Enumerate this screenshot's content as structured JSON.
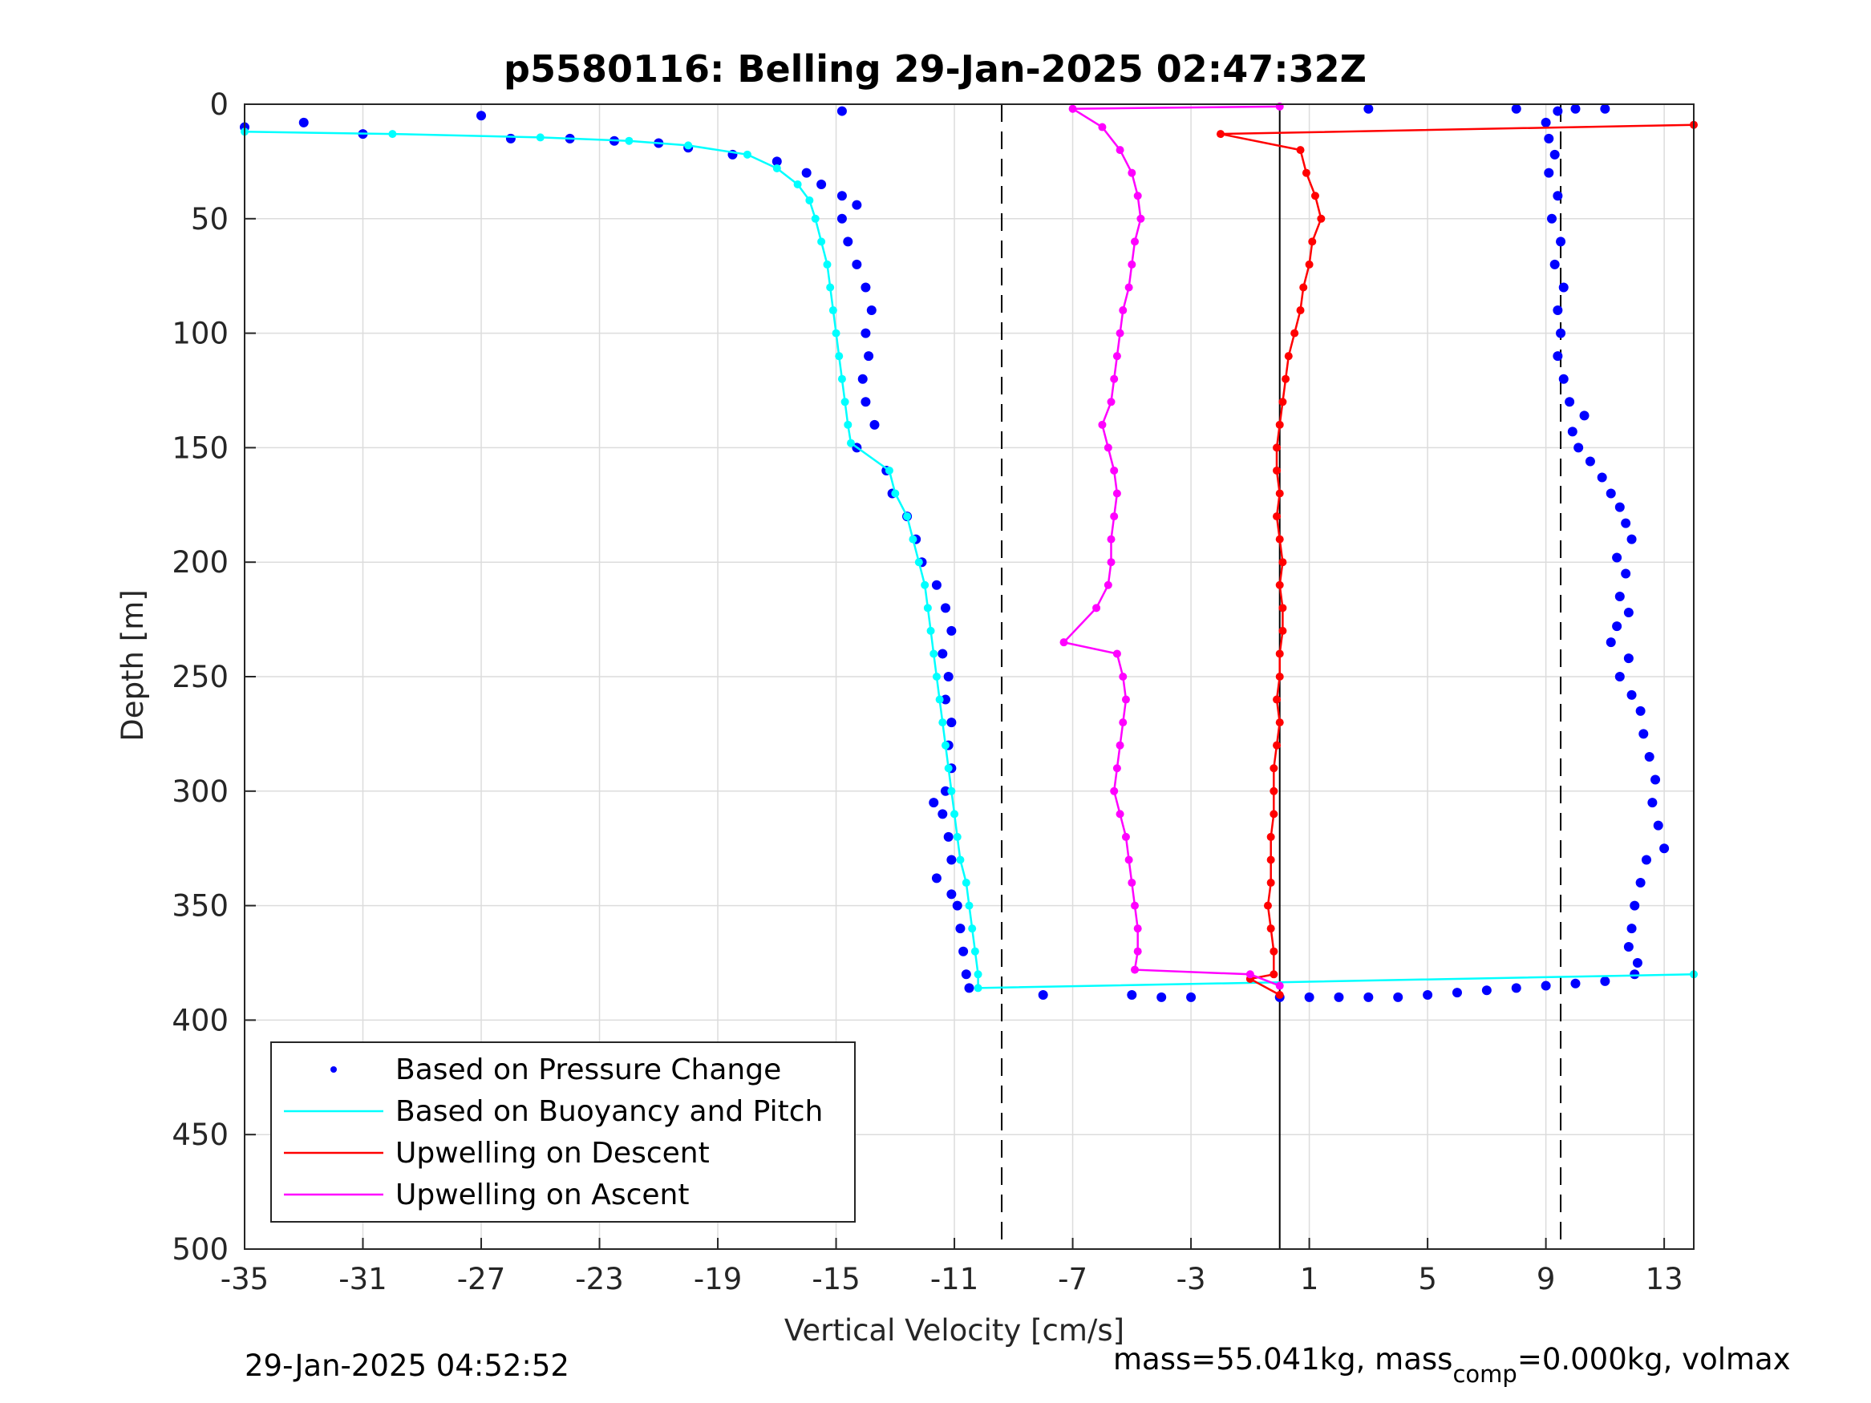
{
  "chart_data": {
    "type": "scatter",
    "title": "p5580116: Belling 29-Jan-2025 02:47:32Z",
    "xlabel": "Vertical Velocity [cm/s]",
    "ylabel": "Depth [m]",
    "xlim": [
      -35,
      14
    ],
    "ylim": [
      0,
      500
    ],
    "y_reversed": true,
    "grid": true,
    "x_ticks": [
      -35,
      -31,
      -27,
      -23,
      -19,
      -15,
      -11,
      -7,
      -3,
      1,
      5,
      9,
      13
    ],
    "y_ticks": [
      0,
      50,
      100,
      150,
      200,
      250,
      300,
      350,
      400,
      450,
      500
    ],
    "reference_lines": [
      {
        "x": -9.4,
        "style": "dashed",
        "color": "#000000"
      },
      {
        "x": 0,
        "style": "solid",
        "color": "#000000"
      },
      {
        "x": 9.5,
        "style": "dashed",
        "color": "#000000"
      }
    ],
    "legend": {
      "position": "bottom-left",
      "entries": [
        {
          "label": "Based on Pressure Change",
          "color": "#0000ff",
          "marker": "dot"
        },
        {
          "label": "Based on Buoyancy and Pitch",
          "color": "#00ffff",
          "marker": "line"
        },
        {
          "label": "Upwelling on Descent",
          "color": "#ff0000",
          "marker": "line"
        },
        {
          "label": "Upwelling on Ascent",
          "color": "#ff00ff",
          "marker": "line"
        }
      ]
    },
    "series": [
      {
        "name": "Based on Pressure Change",
        "color": "#0000ff",
        "marker": "dot",
        "points": [
          [
            -35,
            10
          ],
          [
            -33,
            8
          ],
          [
            -31,
            13
          ],
          [
            -27,
            5
          ],
          [
            -26,
            15
          ],
          [
            -24,
            15
          ],
          [
            -22.5,
            16
          ],
          [
            -21,
            17
          ],
          [
            -20,
            19
          ],
          [
            -18.5,
            22
          ],
          [
            -17,
            25
          ],
          [
            -16,
            30
          ],
          [
            -15.5,
            35
          ],
          [
            -14.8,
            40
          ],
          [
            -14.3,
            44
          ],
          [
            -14.8,
            50
          ],
          [
            -14.6,
            60
          ],
          [
            -14.3,
            70
          ],
          [
            -14,
            80
          ],
          [
            -13.8,
            90
          ],
          [
            -14,
            100
          ],
          [
            -13.9,
            110
          ],
          [
            -14.1,
            120
          ],
          [
            -14,
            130
          ],
          [
            -13.7,
            140
          ],
          [
            -14.3,
            150
          ],
          [
            -13.3,
            160
          ],
          [
            -13.1,
            170
          ],
          [
            -12.6,
            180
          ],
          [
            -12.3,
            190
          ],
          [
            -12.1,
            200
          ],
          [
            -11.6,
            210
          ],
          [
            -11.3,
            220
          ],
          [
            -11.1,
            230
          ],
          [
            -11.4,
            240
          ],
          [
            -11.2,
            250
          ],
          [
            -11.3,
            260
          ],
          [
            -11.1,
            270
          ],
          [
            -11.2,
            280
          ],
          [
            -11.1,
            290
          ],
          [
            -11.3,
            300
          ],
          [
            -11.7,
            305
          ],
          [
            -11.4,
            310
          ],
          [
            -11.2,
            320
          ],
          [
            -11.1,
            330
          ],
          [
            -11.6,
            338
          ],
          [
            -11.1,
            345
          ],
          [
            -10.9,
            350
          ],
          [
            -10.8,
            360
          ],
          [
            -10.7,
            370
          ],
          [
            -10.6,
            380
          ],
          [
            -10.5,
            386
          ],
          [
            -8,
            389
          ],
          [
            -5,
            389
          ],
          [
            -4,
            390
          ],
          [
            -3,
            390
          ],
          [
            0,
            390
          ],
          [
            1,
            390
          ],
          [
            2,
            390
          ],
          [
            3,
            390
          ],
          [
            4,
            390
          ],
          [
            5,
            389
          ],
          [
            6,
            388
          ],
          [
            7,
            387
          ],
          [
            8,
            386
          ],
          [
            9,
            385
          ],
          [
            10,
            384
          ],
          [
            11,
            383
          ],
          [
            12,
            380
          ],
          [
            12.1,
            375
          ],
          [
            11.8,
            368
          ],
          [
            11.9,
            360
          ],
          [
            12,
            350
          ],
          [
            12.2,
            340
          ],
          [
            12.4,
            330
          ],
          [
            13,
            325
          ],
          [
            12.8,
            315
          ],
          [
            12.6,
            305
          ],
          [
            12.7,
            295
          ],
          [
            12.5,
            285
          ],
          [
            12.3,
            275
          ],
          [
            12.2,
            265
          ],
          [
            11.9,
            258
          ],
          [
            11.5,
            250
          ],
          [
            11.8,
            242
          ],
          [
            11.2,
            235
          ],
          [
            11.4,
            228
          ],
          [
            11.8,
            222
          ],
          [
            11.5,
            215
          ],
          [
            11.7,
            205
          ],
          [
            11.4,
            198
          ],
          [
            11.9,
            190
          ],
          [
            11.7,
            183
          ],
          [
            11.5,
            176
          ],
          [
            11.2,
            170
          ],
          [
            10.9,
            163
          ],
          [
            10.5,
            156
          ],
          [
            10.1,
            150
          ],
          [
            9.9,
            143
          ],
          [
            10.3,
            136
          ],
          [
            9.8,
            130
          ],
          [
            9.6,
            120
          ],
          [
            9.4,
            110
          ],
          [
            9.5,
            100
          ],
          [
            9.4,
            90
          ],
          [
            9.6,
            80
          ],
          [
            9.3,
            70
          ],
          [
            9.5,
            60
          ],
          [
            9.2,
            50
          ],
          [
            9.4,
            40
          ],
          [
            9.1,
            30
          ],
          [
            9.3,
            22
          ],
          [
            9.1,
            15
          ],
          [
            9,
            8
          ],
          [
            9.4,
            3
          ],
          [
            10,
            2
          ],
          [
            11,
            2
          ],
          [
            8,
            2
          ],
          [
            3,
            2
          ],
          [
            -14.8,
            3
          ]
        ]
      },
      {
        "name": "Based on Buoyancy and Pitch",
        "color": "#00ffff",
        "marker": "line",
        "points": [
          [
            -35,
            12
          ],
          [
            -30,
            13
          ],
          [
            -25,
            14.5
          ],
          [
            -22,
            16
          ],
          [
            -20,
            18
          ],
          [
            -18,
            22
          ],
          [
            -17,
            28
          ],
          [
            -16.3,
            35
          ],
          [
            -15.9,
            42
          ],
          [
            -15.7,
            50
          ],
          [
            -15.5,
            60
          ],
          [
            -15.3,
            70
          ],
          [
            -15.2,
            80
          ],
          [
            -15.1,
            90
          ],
          [
            -15,
            100
          ],
          [
            -14.9,
            110
          ],
          [
            -14.8,
            120
          ],
          [
            -14.7,
            130
          ],
          [
            -14.6,
            140
          ],
          [
            -14.5,
            148
          ],
          [
            -13.2,
            160
          ],
          [
            -13,
            170
          ],
          [
            -12.6,
            180
          ],
          [
            -12.4,
            190
          ],
          [
            -12.2,
            200
          ],
          [
            -12,
            210
          ],
          [
            -11.9,
            220
          ],
          [
            -11.8,
            230
          ],
          [
            -11.7,
            240
          ],
          [
            -11.6,
            250
          ],
          [
            -11.5,
            260
          ],
          [
            -11.4,
            270
          ],
          [
            -11.3,
            280
          ],
          [
            -11.2,
            290
          ],
          [
            -11.1,
            300
          ],
          [
            -11,
            310
          ],
          [
            -10.9,
            320
          ],
          [
            -10.8,
            330
          ],
          [
            -10.6,
            340
          ],
          [
            -10.5,
            350
          ],
          [
            -10.4,
            360
          ],
          [
            -10.3,
            370
          ],
          [
            -10.2,
            380
          ],
          [
            -10.2,
            386
          ],
          [
            14,
            380
          ]
        ]
      },
      {
        "name": "Upwelling on Descent",
        "color": "#ff0000",
        "marker": "line",
        "points": [
          [
            14,
            9
          ],
          [
            -2,
            13
          ],
          [
            0.7,
            20
          ],
          [
            0.9,
            30
          ],
          [
            1.2,
            40
          ],
          [
            1.4,
            50
          ],
          [
            1.1,
            60
          ],
          [
            1,
            70
          ],
          [
            0.8,
            80
          ],
          [
            0.7,
            90
          ],
          [
            0.5,
            100
          ],
          [
            0.3,
            110
          ],
          [
            0.2,
            120
          ],
          [
            0.1,
            130
          ],
          [
            0,
            140
          ],
          [
            -0.1,
            150
          ],
          [
            -0.1,
            160
          ],
          [
            0,
            170
          ],
          [
            -0.1,
            180
          ],
          [
            0,
            190
          ],
          [
            0.1,
            200
          ],
          [
            0,
            210
          ],
          [
            0.1,
            220
          ],
          [
            0.1,
            230
          ],
          [
            0,
            240
          ],
          [
            0,
            250
          ],
          [
            -0.1,
            260
          ],
          [
            0,
            270
          ],
          [
            -0.1,
            280
          ],
          [
            -0.2,
            290
          ],
          [
            -0.2,
            300
          ],
          [
            -0.2,
            310
          ],
          [
            -0.3,
            320
          ],
          [
            -0.3,
            330
          ],
          [
            -0.3,
            340
          ],
          [
            -0.4,
            350
          ],
          [
            -0.3,
            360
          ],
          [
            -0.2,
            370
          ],
          [
            -0.2,
            380
          ],
          [
            -1,
            382
          ],
          [
            0,
            389
          ]
        ]
      },
      {
        "name": "Upwelling on Ascent",
        "color": "#ff00ff",
        "marker": "line",
        "points": [
          [
            0,
            1
          ],
          [
            -7,
            2
          ],
          [
            -6,
            10
          ],
          [
            -5.4,
            20
          ],
          [
            -5,
            30
          ],
          [
            -4.8,
            40
          ],
          [
            -4.7,
            50
          ],
          [
            -4.9,
            60
          ],
          [
            -5,
            70
          ],
          [
            -5.1,
            80
          ],
          [
            -5.3,
            90
          ],
          [
            -5.4,
            100
          ],
          [
            -5.5,
            110
          ],
          [
            -5.6,
            120
          ],
          [
            -5.7,
            130
          ],
          [
            -6,
            140
          ],
          [
            -5.8,
            150
          ],
          [
            -5.6,
            160
          ],
          [
            -5.5,
            170
          ],
          [
            -5.6,
            180
          ],
          [
            -5.7,
            190
          ],
          [
            -5.7,
            200
          ],
          [
            -5.8,
            210
          ],
          [
            -6.2,
            220
          ],
          [
            -7.3,
            235
          ],
          [
            -5.5,
            240
          ],
          [
            -5.3,
            250
          ],
          [
            -5.2,
            260
          ],
          [
            -5.3,
            270
          ],
          [
            -5.4,
            280
          ],
          [
            -5.5,
            290
          ],
          [
            -5.6,
            300
          ],
          [
            -5.4,
            310
          ],
          [
            -5.2,
            320
          ],
          [
            -5.1,
            330
          ],
          [
            -5,
            340
          ],
          [
            -4.9,
            350
          ],
          [
            -4.8,
            360
          ],
          [
            -4.8,
            370
          ],
          [
            -4.9,
            378
          ],
          [
            -1,
            380
          ],
          [
            0,
            385
          ]
        ]
      }
    ]
  },
  "footer": {
    "timestamp": "29-Jan-2025 04:52:52",
    "mass_prefix": "mass=55.041kg, mass",
    "mass_subscript": "comp",
    "mass_suffix": "=0.000kg, volmax"
  }
}
